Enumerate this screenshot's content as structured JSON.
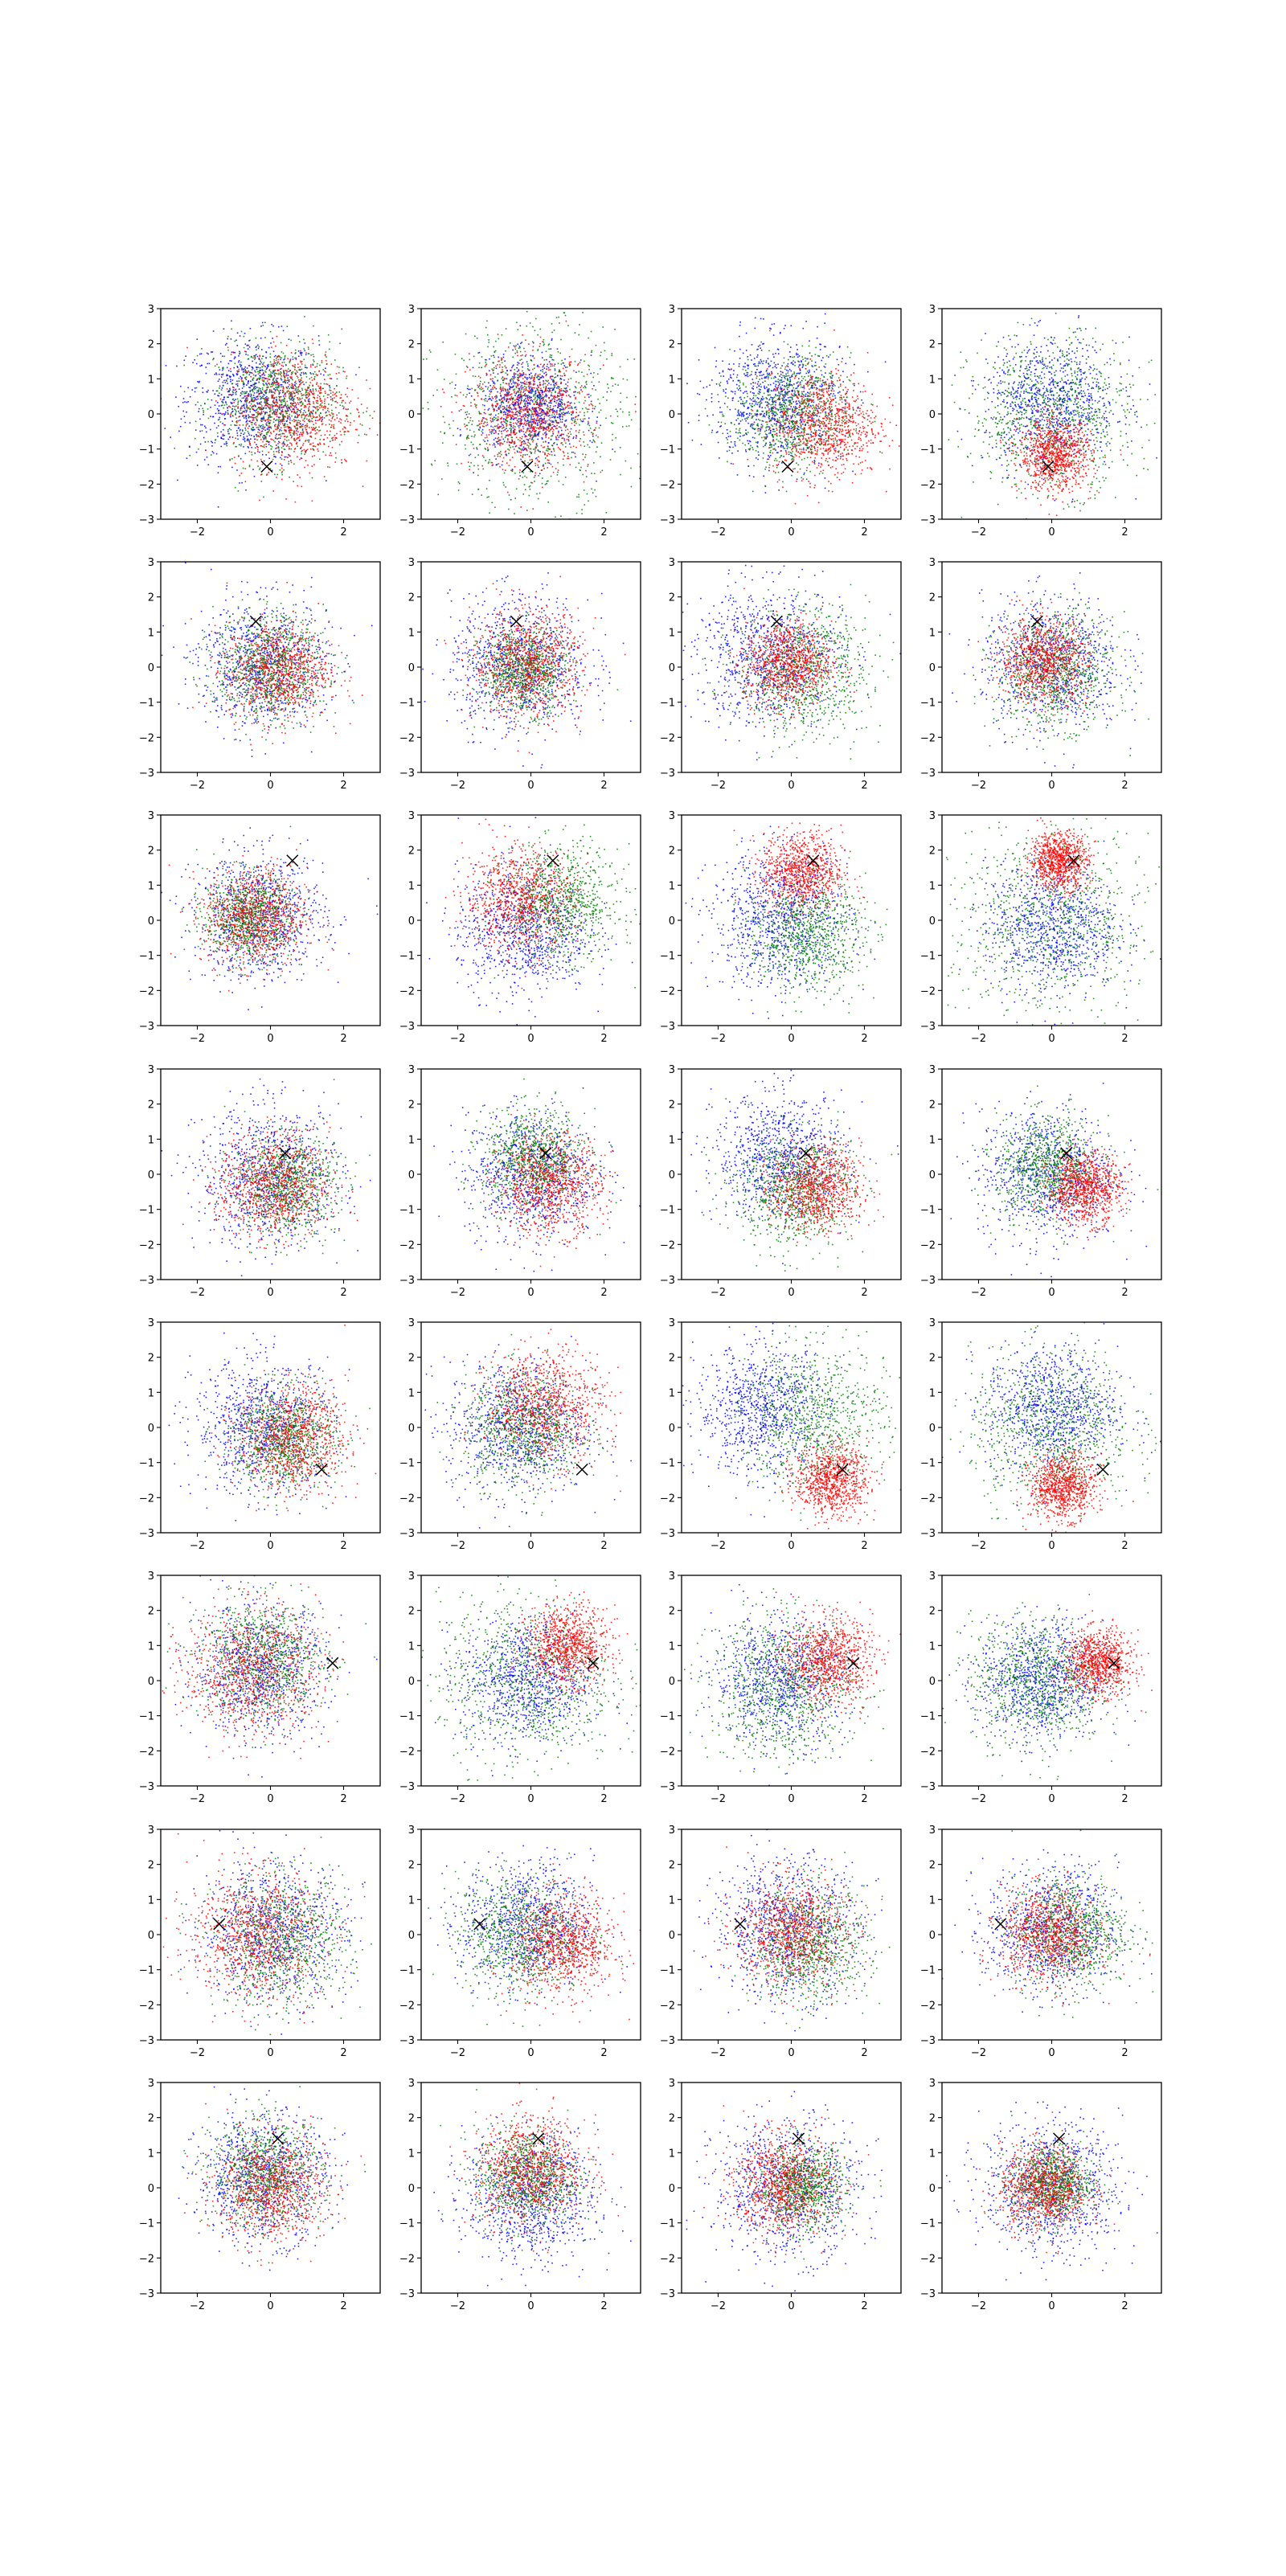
{
  "figure": {
    "rows": 8,
    "cols": 4
  },
  "colors": {
    "blue": "#0000ff",
    "green": "#008000",
    "red": "#ff0000",
    "marker": "#000000"
  },
  "chart_data": {
    "type": "scatter",
    "xlim": [
      -3,
      3
    ],
    "ylim": [
      -3,
      3
    ],
    "xticks": [
      "−2",
      "0",
      "2"
    ],
    "yticks": [
      "−3",
      "−2",
      "−1",
      "0",
      "1",
      "2",
      "3"
    ],
    "xtick_values": [
      -2,
      0,
      2
    ],
    "ytick_values": [
      -3,
      -2,
      -1,
      0,
      1,
      2,
      3
    ],
    "grid": false,
    "marker_symbol": "×",
    "rows": [
      {
        "marker": [
          -0.1,
          -1.5
        ],
        "panels": [
          {
            "blue": {
              "c": [
                -0.5,
                0.4
              ],
              "s": 0.9
            },
            "green": {
              "c": [
                0.2,
                0.3
              ],
              "s": 0.85
            },
            "red": {
              "c": [
                0.6,
                0.1
              ],
              "s": 0.85
            }
          },
          {
            "blue": {
              "c": [
                0.0,
                0.2
              ],
              "s": 0.7
            },
            "green": {
              "c": [
                0.0,
                0.0
              ],
              "s": 1.3
            },
            "red": {
              "c": [
                0.0,
                0.0
              ],
              "s": 0.8
            }
          },
          {
            "blue": {
              "c": [
                -0.4,
                0.4
              ],
              "s": 0.9
            },
            "green": {
              "c": [
                0.0,
                0.0
              ],
              "s": 0.8
            },
            "red": {
              "c": [
                0.9,
                -0.3
              ],
              "s": 0.75
            }
          },
          {
            "blue": {
              "c": [
                0.0,
                0.3
              ],
              "s": 0.9
            },
            "green": {
              "c": [
                0.0,
                0.0
              ],
              "s": 1.1
            },
            "red": {
              "c": [
                0.1,
                -1.2
              ],
              "s": 0.5
            }
          }
        ]
      },
      {
        "marker": [
          -0.4,
          1.3
        ],
        "panels": [
          {
            "blue": {
              "c": [
                -0.2,
                0.1
              ],
              "s": 0.9
            },
            "green": {
              "c": [
                0.0,
                0.0
              ],
              "s": 0.75
            },
            "red": {
              "c": [
                0.2,
                -0.1
              ],
              "s": 0.7
            }
          },
          {
            "blue": {
              "c": [
                -0.3,
                0.1
              ],
              "s": 0.95
            },
            "green": {
              "c": [
                -0.2,
                -0.1
              ],
              "s": 0.6
            },
            "red": {
              "c": [
                -0.1,
                0.1
              ],
              "s": 0.75
            }
          },
          {
            "blue": {
              "c": [
                -0.6,
                0.3
              ],
              "s": 1.0
            },
            "green": {
              "c": [
                0.3,
                -0.1
              ],
              "s": 0.9
            },
            "red": {
              "c": [
                -0.1,
                0.1
              ],
              "s": 0.6
            }
          },
          {
            "blue": {
              "c": [
                0.0,
                0.1
              ],
              "s": 0.95
            },
            "green": {
              "c": [
                0.1,
                -0.1
              ],
              "s": 0.8
            },
            "red": {
              "c": [
                -0.2,
                0.2
              ],
              "s": 0.6
            }
          }
        ]
      },
      {
        "marker": [
          0.6,
          1.7
        ],
        "panels": [
          {
            "blue": {
              "c": [
                -0.3,
                0.1
              ],
              "s": 0.9
            },
            "green": {
              "c": [
                -0.6,
                0.1
              ],
              "s": 0.6
            },
            "red": {
              "c": [
                -0.4,
                0.1
              ],
              "s": 0.7
            }
          },
          {
            "blue": {
              "c": [
                -0.2,
                -0.3
              ],
              "s": 0.9
            },
            "green": {
              "c": [
                0.8,
                0.5
              ],
              "s": 0.8
            },
            "red": {
              "c": [
                -0.3,
                0.6
              ],
              "s": 0.75
            }
          },
          {
            "blue": {
              "c": [
                -0.3,
                0.0
              ],
              "s": 0.95
            },
            "green": {
              "c": [
                0.4,
                -0.4
              ],
              "s": 0.8
            },
            "red": {
              "c": [
                0.3,
                1.4
              ],
              "s": 0.55
            }
          },
          {
            "blue": {
              "c": [
                0.0,
                -0.2
              ],
              "s": 0.9
            },
            "green": {
              "c": [
                0.0,
                -0.1
              ],
              "s": 1.35
            },
            "red": {
              "c": [
                0.2,
                1.7
              ],
              "s": 0.4
            }
          }
        ]
      },
      {
        "marker": [
          0.4,
          0.6
        ],
        "panels": [
          {
            "blue": {
              "c": [
                0.0,
                -0.1
              ],
              "s": 1.0
            },
            "green": {
              "c": [
                0.4,
                -0.3
              ],
              "s": 0.7
            },
            "red": {
              "c": [
                0.1,
                -0.3
              ],
              "s": 0.75
            }
          },
          {
            "blue": {
              "c": [
                0.0,
                0.0
              ],
              "s": 0.9
            },
            "green": {
              "c": [
                0.1,
                0.4
              ],
              "s": 0.7
            },
            "red": {
              "c": [
                0.5,
                -0.3
              ],
              "s": 0.7
            }
          },
          {
            "blue": {
              "c": [
                -0.3,
                0.5
              ],
              "s": 0.9
            },
            "green": {
              "c": [
                0.1,
                -0.4
              ],
              "s": 0.8
            },
            "red": {
              "c": [
                0.7,
                -0.4
              ],
              "s": 0.6
            }
          },
          {
            "blue": {
              "c": [
                -0.1,
                0.0
              ],
              "s": 0.95
            },
            "green": {
              "c": [
                -0.1,
                0.2
              ],
              "s": 0.7
            },
            "red": {
              "c": [
                0.9,
                -0.4
              ],
              "s": 0.5
            }
          }
        ]
      },
      {
        "marker": [
          1.4,
          -1.2
        ],
        "panels": [
          {
            "blue": {
              "c": [
                -0.2,
                0.0
              ],
              "s": 0.95
            },
            "green": {
              "c": [
                0.4,
                -0.3
              ],
              "s": 0.7
            },
            "red": {
              "c": [
                0.6,
                -0.3
              ],
              "s": 0.75
            }
          },
          {
            "blue": {
              "c": [
                -0.4,
                0.0
              ],
              "s": 0.95
            },
            "green": {
              "c": [
                -0.2,
                0.0
              ],
              "s": 0.8
            },
            "red": {
              "c": [
                0.4,
                0.6
              ],
              "s": 0.8
            }
          },
          {
            "blue": {
              "c": [
                -0.8,
                0.5
              ],
              "s": 0.9
            },
            "green": {
              "c": [
                0.6,
                0.3
              ],
              "s": 1.0
            },
            "red": {
              "c": [
                1.1,
                -1.5
              ],
              "s": 0.5
            }
          },
          {
            "blue": {
              "c": [
                0.0,
                0.5
              ],
              "s": 0.9
            },
            "green": {
              "c": [
                0.0,
                0.0
              ],
              "s": 1.1
            },
            "red": {
              "c": [
                0.3,
                -1.7
              ],
              "s": 0.45
            }
          }
        ]
      },
      {
        "marker": [
          1.7,
          0.5
        ],
        "panels": [
          {
            "blue": {
              "c": [
                -0.3,
                0.3
              ],
              "s": 0.9
            },
            "green": {
              "c": [
                -0.2,
                0.6
              ],
              "s": 0.85
            },
            "red": {
              "c": [
                -0.5,
                0.3
              ],
              "s": 0.9
            }
          },
          {
            "blue": {
              "c": [
                -0.1,
                0.0
              ],
              "s": 0.9
            },
            "green": {
              "c": [
                -0.1,
                0.0
              ],
              "s": 1.2
            },
            "red": {
              "c": [
                1.0,
                1.0
              ],
              "s": 0.55
            }
          },
          {
            "blue": {
              "c": [
                -0.3,
                0.0
              ],
              "s": 0.9
            },
            "green": {
              "c": [
                -0.2,
                -0.2
              ],
              "s": 1.0
            },
            "red": {
              "c": [
                1.0,
                0.6
              ],
              "s": 0.6
            }
          },
          {
            "blue": {
              "c": [
                -0.3,
                0.0
              ],
              "s": 0.85
            },
            "green": {
              "c": [
                -0.4,
                0.0
              ],
              "s": 0.9
            },
            "red": {
              "c": [
                1.3,
                0.5
              ],
              "s": 0.45
            }
          }
        ]
      },
      {
        "marker": [
          -1.4,
          0.3
        ],
        "panels": [
          {
            "blue": {
              "c": [
                0.1,
                0.1
              ],
              "s": 1.0
            },
            "green": {
              "c": [
                0.3,
                -0.2
              ],
              "s": 0.9
            },
            "red": {
              "c": [
                -0.4,
                0.0
              ],
              "s": 0.9
            }
          },
          {
            "blue": {
              "c": [
                -0.1,
                0.3
              ],
              "s": 0.9
            },
            "green": {
              "c": [
                -0.3,
                0.0
              ],
              "s": 0.85
            },
            "red": {
              "c": [
                0.9,
                -0.3
              ],
              "s": 0.7
            }
          },
          {
            "blue": {
              "c": [
                -0.1,
                0.2
              ],
              "s": 1.0
            },
            "green": {
              "c": [
                0.5,
                -0.3
              ],
              "s": 0.8
            },
            "red": {
              "c": [
                0.0,
                0.1
              ],
              "s": 0.75
            }
          },
          {
            "blue": {
              "c": [
                0.0,
                0.1
              ],
              "s": 0.9
            },
            "green": {
              "c": [
                0.5,
                0.1
              ],
              "s": 0.8
            },
            "red": {
              "c": [
                -0.1,
                0.0
              ],
              "s": 0.65
            }
          }
        ]
      },
      {
        "marker": [
          0.2,
          1.4
        ],
        "panels": [
          {
            "blue": {
              "c": [
                -0.2,
                0.3
              ],
              "s": 0.9
            },
            "green": {
              "c": [
                -0.1,
                0.4
              ],
              "s": 0.75
            },
            "red": {
              "c": [
                0.0,
                0.0
              ],
              "s": 0.75
            }
          },
          {
            "blue": {
              "c": [
                0.0,
                -0.3
              ],
              "s": 0.9
            },
            "green": {
              "c": [
                -0.1,
                0.3
              ],
              "s": 0.7
            },
            "red": {
              "c": [
                0.0,
                0.5
              ],
              "s": 0.75
            }
          },
          {
            "blue": {
              "c": [
                -0.1,
                0.0
              ],
              "s": 1.0
            },
            "green": {
              "c": [
                0.3,
                0.0
              ],
              "s": 0.6
            },
            "red": {
              "c": [
                -0.2,
                0.1
              ],
              "s": 0.7
            }
          },
          {
            "blue": {
              "c": [
                0.0,
                0.0
              ],
              "s": 0.95
            },
            "green": {
              "c": [
                0.0,
                0.1
              ],
              "s": 0.55
            },
            "red": {
              "c": [
                -0.2,
                0.0
              ],
              "s": 0.6
            }
          }
        ]
      }
    ]
  }
}
